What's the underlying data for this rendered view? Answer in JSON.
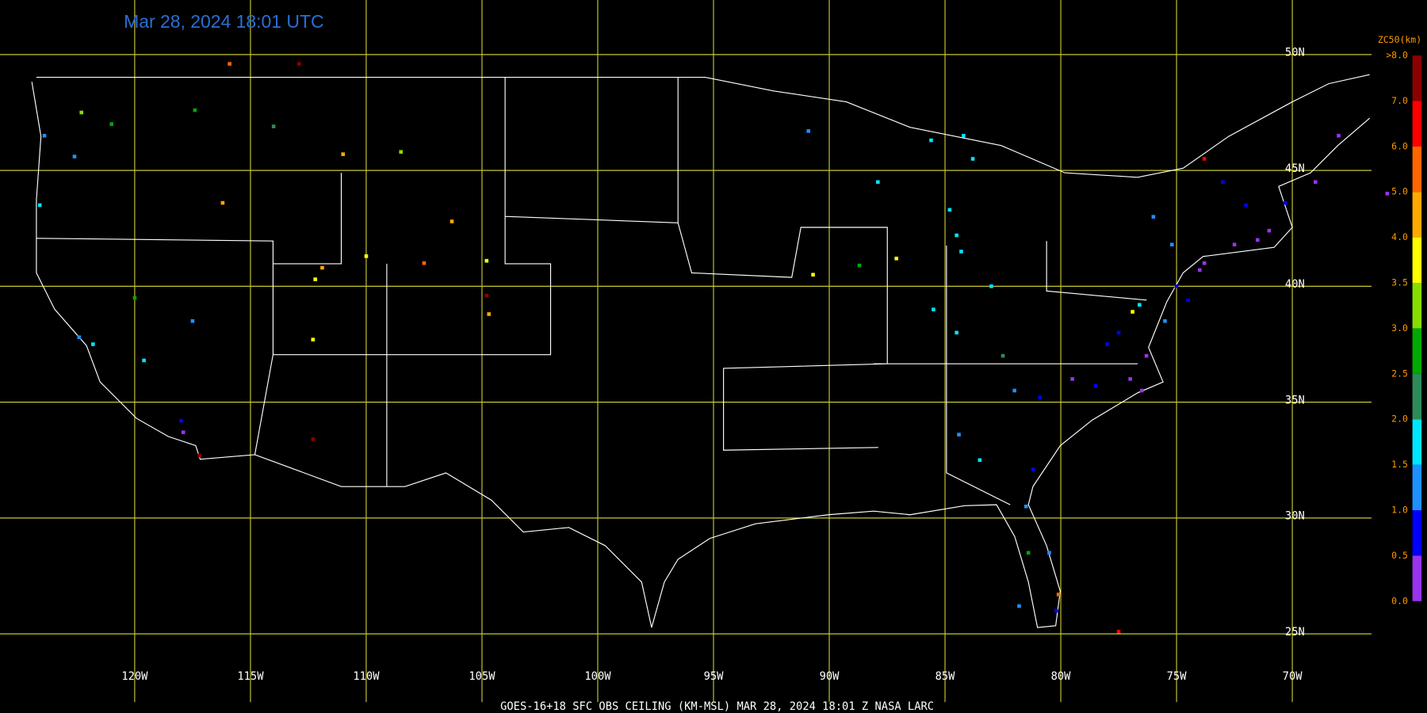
{
  "title": "Mar 28, 2024 18:01 UTC",
  "caption": "GOES-16+18  SFC OBS CEILING (KM-MSL)   MAR 28, 2024 18:01 Z   NASA LARC",
  "grid": {
    "color": "#c8c832",
    "lat": [
      {
        "value": 50,
        "label": "50N"
      },
      {
        "value": 45,
        "label": "45N"
      },
      {
        "value": 40,
        "label": "40N"
      },
      {
        "value": 35,
        "label": "35N"
      },
      {
        "value": 30,
        "label": "30N"
      },
      {
        "value": 25,
        "label": "25N"
      }
    ],
    "lon": [
      {
        "value": -120,
        "label": "120W"
      },
      {
        "value": -115,
        "label": "115W"
      },
      {
        "value": -110,
        "label": "110W"
      },
      {
        "value": -105,
        "label": "105W"
      },
      {
        "value": -100,
        "label": "100W"
      },
      {
        "value": -95,
        "label": "95W"
      },
      {
        "value": -90,
        "label": "90W"
      },
      {
        "value": -85,
        "label": "85W"
      },
      {
        "value": -80,
        "label": "80W"
      },
      {
        "value": -75,
        "label": "75W"
      },
      {
        "value": -70,
        "label": "70W"
      }
    ]
  },
  "colorbar": {
    "title": "ZC50(km)",
    "ticks": [
      {
        "value": 0,
        "label": "0.0"
      },
      {
        "value": 0.5,
        "label": "0.5"
      },
      {
        "value": 1,
        "label": "1.0"
      },
      {
        "value": 1.5,
        "label": "1.5"
      },
      {
        "value": 2,
        "label": "2.0"
      },
      {
        "value": 2.5,
        "label": "2.5"
      },
      {
        "value": 3,
        "label": "3.0"
      },
      {
        "value": 3.5,
        "label": "3.5"
      },
      {
        "value": 4,
        "label": "4.0"
      },
      {
        "value": 5,
        "label": "5.0"
      },
      {
        "value": 6,
        "label": "6.0"
      },
      {
        "value": 7,
        "label": "7.0"
      },
      {
        "value": 8,
        "label": ">8.0"
      }
    ],
    "colors": [
      "#9933ee",
      "#0000ff",
      "#1e90ff",
      "#00e5ff",
      "#2e8b57",
      "#00aa00",
      "#88dd00",
      "#ffff00",
      "#ffaa00",
      "#ff6600",
      "#ff0000",
      "#8b0000"
    ]
  },
  "stations": [
    {
      "lon": -122.3,
      "lat": 47.5,
      "value": 3.2
    },
    {
      "lon": -122.6,
      "lat": 45.6,
      "value": 1.3
    },
    {
      "lon": -123.9,
      "lat": 46.5,
      "value": 1.0
    },
    {
      "lon": -124.1,
      "lat": 43.5,
      "value": 1.6
    },
    {
      "lon": -121.0,
      "lat": 47.0,
      "value": 2.6
    },
    {
      "lon": -117.4,
      "lat": 47.6,
      "value": 2.8
    },
    {
      "lon": -116.2,
      "lat": 43.6,
      "value": 4.3
    },
    {
      "lon": -114.0,
      "lat": 46.9,
      "value": 2.2
    },
    {
      "lon": -111.0,
      "lat": 45.7,
      "value": 4.6
    },
    {
      "lon": -108.5,
      "lat": 45.8,
      "value": 3.1
    },
    {
      "lon": -106.3,
      "lat": 42.8,
      "value": 4.2
    },
    {
      "lon": -104.8,
      "lat": 41.1,
      "value": 3.6
    },
    {
      "lon": -110.0,
      "lat": 41.3,
      "value": 3.9
    },
    {
      "lon": -111.9,
      "lat": 40.8,
      "value": 4.1
    },
    {
      "lon": -112.2,
      "lat": 40.3,
      "value": 3.7
    },
    {
      "lon": -104.8,
      "lat": 39.6,
      "value": 7.5
    },
    {
      "lon": -104.7,
      "lat": 38.8,
      "value": 4.8
    },
    {
      "lon": -107.5,
      "lat": 41.0,
      "value": 5.7
    },
    {
      "lon": -112.3,
      "lat": 37.7,
      "value": 3.8
    },
    {
      "lon": -112.3,
      "lat": 33.4,
      "value": 7.4
    },
    {
      "lon": -117.2,
      "lat": 32.7,
      "value": 7.8
    },
    {
      "lon": -118.0,
      "lat": 34.2,
      "value": 0.9
    },
    {
      "lon": -117.9,
      "lat": 33.7,
      "value": 0.3
    },
    {
      "lon": -121.8,
      "lat": 37.5,
      "value": 1.6
    },
    {
      "lon": -122.4,
      "lat": 37.8,
      "value": 1.2
    },
    {
      "lon": -120.0,
      "lat": 39.5,
      "value": 2.9
    },
    {
      "lon": -119.6,
      "lat": 36.8,
      "value": 1.9
    },
    {
      "lon": -117.5,
      "lat": 38.5,
      "value": 1.4
    },
    {
      "lon": -115.9,
      "lat": 49.6,
      "value": 5.6
    },
    {
      "lon": -112.9,
      "lat": 49.6,
      "value": 7.6
    },
    {
      "lon": -90.7,
      "lat": 40.5,
      "value": 3.7
    },
    {
      "lon": -88.7,
      "lat": 40.9,
      "value": 2.7
    },
    {
      "lon": -84.5,
      "lat": 42.2,
      "value": 1.8
    },
    {
      "lon": -84.3,
      "lat": 41.5,
      "value": 1.7
    },
    {
      "lon": -83.0,
      "lat": 40.0,
      "value": 1.9
    },
    {
      "lon": -83.8,
      "lat": 45.5,
      "value": 1.7
    },
    {
      "lon": -85.6,
      "lat": 46.3,
      "value": 1.6
    },
    {
      "lon": -84.8,
      "lat": 43.3,
      "value": 1.6
    },
    {
      "lon": -87.9,
      "lat": 44.5,
      "value": 1.7
    },
    {
      "lon": -84.2,
      "lat": 46.5,
      "value": 1.5
    },
    {
      "lon": -87.1,
      "lat": 41.2,
      "value": 3.6
    },
    {
      "lon": -85.5,
      "lat": 39.0,
      "value": 1.8
    },
    {
      "lon": -84.5,
      "lat": 38.0,
      "value": 1.7
    },
    {
      "lon": -82.5,
      "lat": 37.0,
      "value": 2.3
    },
    {
      "lon": -90.9,
      "lat": 46.7,
      "value": 1.2
    },
    {
      "lon": -78.0,
      "lat": 37.5,
      "value": 0.8
    },
    {
      "lon": -77.0,
      "lat": 36.0,
      "value": 0.4
    },
    {
      "lon": -78.5,
      "lat": 35.7,
      "value": 0.6
    },
    {
      "lon": -79.5,
      "lat": 36.0,
      "value": 0.3
    },
    {
      "lon": -76.5,
      "lat": 35.5,
      "value": 0.2
    },
    {
      "lon": -80.9,
      "lat": 35.2,
      "value": 0.9
    },
    {
      "lon": -82.0,
      "lat": 35.5,
      "value": 1.1
    },
    {
      "lon": -84.4,
      "lat": 33.6,
      "value": 1.2
    },
    {
      "lon": -83.5,
      "lat": 32.5,
      "value": 1.7
    },
    {
      "lon": -81.2,
      "lat": 32.1,
      "value": 0.8
    },
    {
      "lon": -81.5,
      "lat": 30.5,
      "value": 1.1
    },
    {
      "lon": -80.5,
      "lat": 28.5,
      "value": 1.3
    },
    {
      "lon": -81.4,
      "lat": 28.5,
      "value": 2.9
    },
    {
      "lon": -80.2,
      "lat": 26.0,
      "value": 0.9
    },
    {
      "lon": -81.8,
      "lat": 26.2,
      "value": 1.4
    },
    {
      "lon": -80.1,
      "lat": 26.7,
      "value": 5.6
    },
    {
      "lon": -75.0,
      "lat": 40.0,
      "value": 0.9
    },
    {
      "lon": -74.0,
      "lat": 40.7,
      "value": 0.3
    },
    {
      "lon": -73.8,
      "lat": 41.0,
      "value": 0.4
    },
    {
      "lon": -72.5,
      "lat": 41.8,
      "value": 0.3
    },
    {
      "lon": -71.5,
      "lat": 42.0,
      "value": 0.2
    },
    {
      "lon": -71.0,
      "lat": 42.4,
      "value": 0.4
    },
    {
      "lon": -72.0,
      "lat": 43.5,
      "value": 0.8
    },
    {
      "lon": -70.3,
      "lat": 43.6,
      "value": 0.5
    },
    {
      "lon": -69.0,
      "lat": 44.5,
      "value": 0.3
    },
    {
      "lon": -68.0,
      "lat": 46.5,
      "value": 0.3
    },
    {
      "lon": -73.0,
      "lat": 44.5,
      "value": 0.6
    },
    {
      "lon": -76.0,
      "lat": 43.0,
      "value": 1.2
    },
    {
      "lon": -76.9,
      "lat": 38.9,
      "value": 3.5
    },
    {
      "lon": -76.6,
      "lat": 39.2,
      "value": 1.7
    },
    {
      "lon": -77.5,
      "lat": 38.0,
      "value": 0.7
    },
    {
      "lon": -76.3,
      "lat": 37.0,
      "value": 0.2
    },
    {
      "lon": -75.5,
      "lat": 38.5,
      "value": 1.3
    },
    {
      "lon": -74.5,
      "lat": 39.4,
      "value": 0.6
    },
    {
      "lon": -75.2,
      "lat": 41.8,
      "value": 1.0
    },
    {
      "lon": -73.8,
      "lat": 45.5,
      "value": 6.2
    },
    {
      "lon": -65.9,
      "lat": 44.0,
      "value": 0.3
    },
    {
      "lon": -77.5,
      "lat": 25.1,
      "value": 6.4
    }
  ]
}
